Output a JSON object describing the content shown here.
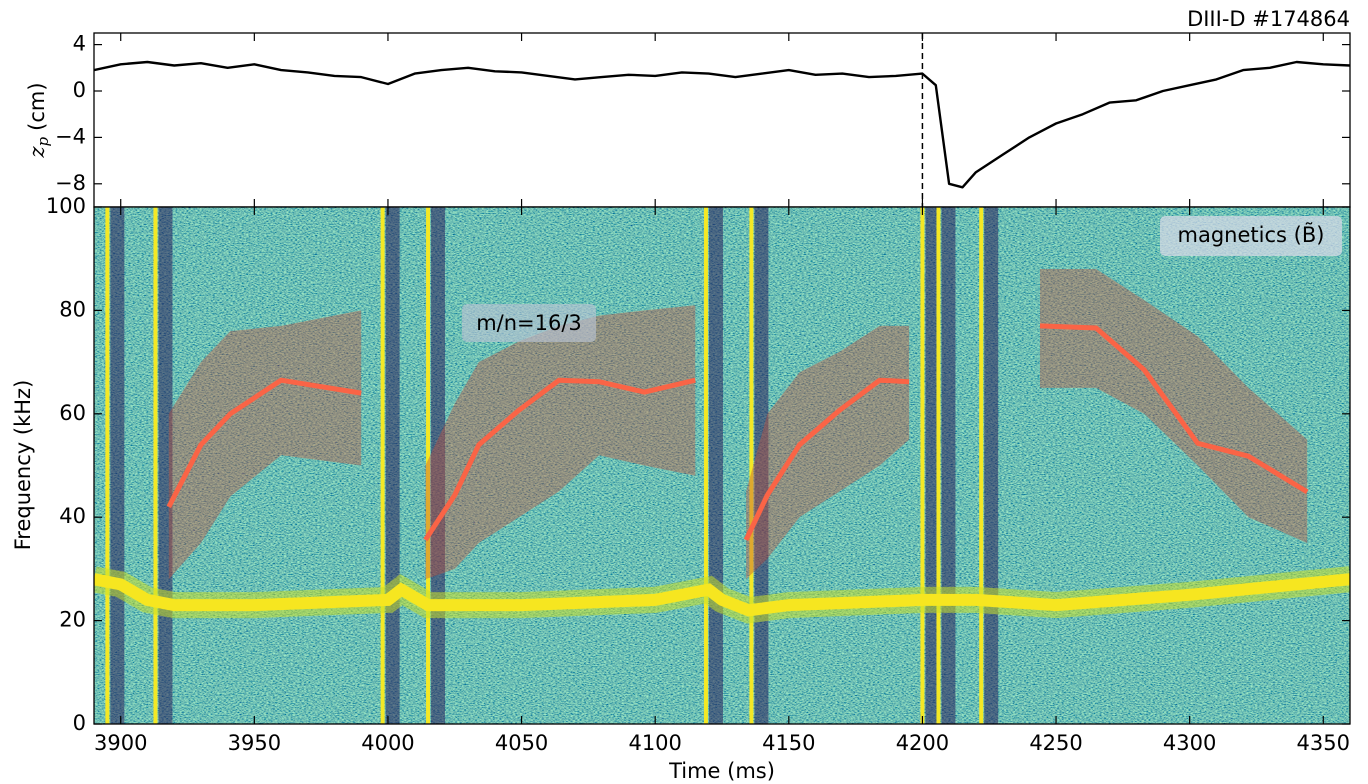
{
  "chart_data": [
    {
      "type": "line",
      "title": "DIII-D #174864",
      "ylabel": "z",
      "ylabel_subscript": "p",
      "ylabel_unit": "(cm)",
      "xlim": [
        3890,
        4360
      ],
      "ylim": [
        -10,
        5
      ],
      "xticks": [
        3900,
        3950,
        4000,
        4050,
        4100,
        4150,
        4200,
        4250,
        4300,
        4350
      ],
      "yticks": [
        4,
        0,
        {
          "value": -4,
          "label": "−4"
        },
        {
          "value": -8,
          "label": "−8"
        }
      ],
      "vline": 4200,
      "color": "#000000",
      "x": [
        3890,
        3900,
        3910,
        3920,
        3930,
        3940,
        3950,
        3960,
        3970,
        3980,
        3990,
        4000,
        4010,
        4020,
        4030,
        4040,
        4050,
        4060,
        4070,
        4080,
        4090,
        4100,
        4110,
        4120,
        4130,
        4140,
        4150,
        4160,
        4170,
        4180,
        4190,
        4200,
        4205,
        4210,
        4215,
        4220,
        4230,
        4240,
        4250,
        4260,
        4270,
        4280,
        4290,
        4300,
        4310,
        4320,
        4330,
        4340,
        4350,
        4360
      ],
      "values": [
        1.8,
        2.3,
        2.5,
        2.2,
        2.4,
        2.0,
        2.3,
        1.8,
        1.6,
        1.3,
        1.2,
        0.6,
        1.5,
        1.8,
        2.0,
        1.7,
        1.6,
        1.3,
        1.0,
        1.2,
        1.4,
        1.3,
        1.6,
        1.5,
        1.2,
        1.5,
        1.8,
        1.4,
        1.5,
        1.2,
        1.3,
        1.5,
        0.5,
        -8.0,
        -8.3,
        -7.0,
        -5.5,
        -4.0,
        -2.8,
        -2.0,
        -1.0,
        -0.8,
        0.0,
        0.5,
        1.0,
        1.8,
        2.0,
        2.5,
        2.3,
        2.2
      ]
    },
    {
      "type": "spectrogram",
      "xlabel": "Time (ms)",
      "ylabel": "Frequency (kHz)",
      "label": "magnetics (B̃)",
      "annotation": "m/n=16/3",
      "xlim": [
        3890,
        4360
      ],
      "ylim": [
        0,
        100
      ],
      "xticks": [
        3900,
        3950,
        4000,
        4050,
        4100,
        4150,
        4200,
        4250,
        4300,
        4350
      ],
      "yticks": [
        0,
        20,
        40,
        60,
        80,
        100
      ],
      "bursts": [
        3895,
        3913,
        3998,
        4015,
        4119,
        4136,
        4200,
        4206,
        4222
      ],
      "mode": {
        "x": [
          3890,
          3900,
          3910,
          3920,
          3950,
          4000,
          4005,
          4015,
          4050,
          4100,
          4120,
          4125,
          4135,
          4150,
          4200,
          4220,
          4250,
          4300,
          4360
        ],
        "values": [
          28,
          27,
          24,
          23,
          23,
          24,
          26,
          23,
          23,
          24,
          26,
          24,
          22,
          23,
          24,
          24,
          23,
          25,
          28
        ]
      },
      "color": "#fa6446",
      "band_color": "#c0503c",
      "fits": [
        {
          "x": [
            3918,
            3930,
            3941,
            3960,
            3990
          ],
          "values": [
            42,
            54,
            60,
            66.5,
            64
          ],
          "lower": [
            28,
            35,
            44,
            52,
            50
          ],
          "upper": [
            60,
            70,
            76,
            77,
            80
          ]
        },
        {
          "x": [
            4014,
            4025,
            4034,
            4049,
            4064,
            4079,
            4096,
            4115
          ],
          "values": [
            35.6,
            44.3,
            54,
            60.7,
            66.5,
            66.2,
            64.2,
            66.5
          ],
          "lower": [
            28,
            30,
            35,
            40,
            45,
            52,
            50,
            48
          ],
          "upper": [
            50,
            62,
            70,
            74,
            77,
            79,
            80,
            81
          ]
        },
        {
          "x": [
            4134,
            4142,
            4154,
            4169,
            4184,
            4195
          ],
          "values": [
            35.6,
            44.3,
            54,
            60.7,
            66.5,
            66.2
          ],
          "lower": [
            28,
            32,
            40,
            45,
            50,
            55
          ],
          "upper": [
            45,
            60,
            68,
            72,
            77,
            77
          ]
        },
        {
          "x": [
            4244,
            4265,
            4283,
            4303,
            4322,
            4344
          ],
          "values": [
            77,
            76.6,
            68.5,
            54.3,
            51.8,
            44.9
          ],
          "lower": [
            65,
            65,
            60,
            50,
            40,
            35
          ],
          "upper": [
            88,
            88,
            82,
            75,
            65,
            55
          ]
        }
      ]
    }
  ]
}
